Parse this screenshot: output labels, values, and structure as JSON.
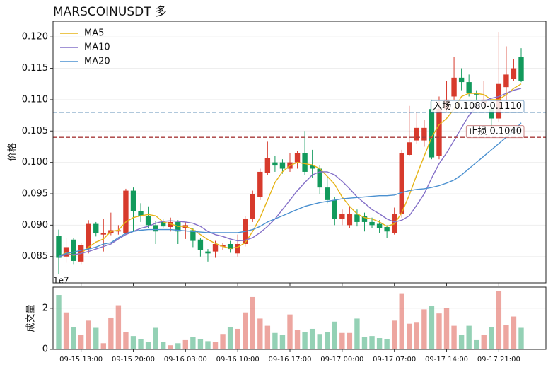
{
  "chart_data": {
    "type": "candlestick",
    "title": "MARSCOINUSDT  多",
    "ylabel": "价格",
    "volume_ylabel": "成交量",
    "volume_offset_label": "1e7",
    "x": [
      "09-15 10:00",
      "09-15 11:00",
      "09-15 12:00",
      "09-15 13:00",
      "09-15 14:00",
      "09-15 15:00",
      "09-15 16:00",
      "09-15 17:00",
      "09-15 18:00",
      "09-15 19:00",
      "09-15 20:00",
      "09-15 21:00",
      "09-15 22:00",
      "09-15 23:00",
      "09-16 00:00",
      "09-16 01:00",
      "09-16 02:00",
      "09-16 03:00",
      "09-16 04:00",
      "09-16 05:00",
      "09-16 06:00",
      "09-16 07:00",
      "09-16 08:00",
      "09-16 09:00",
      "09-16 10:00",
      "09-16 11:00",
      "09-16 12:00",
      "09-16 13:00",
      "09-16 14:00",
      "09-16 15:00",
      "09-16 16:00",
      "09-16 17:00",
      "09-16 18:00",
      "09-16 19:00",
      "09-16 20:00",
      "09-16 21:00",
      "09-16 22:00",
      "09-16 23:00",
      "09-17 00:00",
      "09-17 01:00",
      "09-17 02:00",
      "09-17 03:00",
      "09-17 04:00",
      "09-17 05:00",
      "09-17 06:00",
      "09-17 07:00",
      "09-17 08:00",
      "09-17 09:00",
      "09-17 10:00",
      "09-17 11:00",
      "09-17 12:00",
      "09-17 13:00",
      "09-17 14:00",
      "09-17 15:00",
      "09-17 16:00",
      "09-17 17:00",
      "09-17 18:00",
      "09-17 19:00",
      "09-17 20:00",
      "09-17 21:00",
      "09-17 22:00",
      "09-17 23:00",
      "09-18 00:00"
    ],
    "xticks": [
      "09-15 13:00",
      "09-15 20:00",
      "09-16 03:00",
      "09-16 10:00",
      "09-16 17:00",
      "09-17 00:00",
      "09-17 07:00",
      "09-17 14:00",
      "09-17 21:00"
    ],
    "open": [
      0.0883,
      0.085,
      0.0877,
      0.0842,
      0.0862,
      0.0902,
      0.0885,
      0.0888,
      0.089,
      0.0888,
      0.0955,
      0.0922,
      0.0915,
      0.09,
      0.0905,
      0.0897,
      0.0905,
      0.0895,
      0.0892,
      0.0877,
      0.0858,
      0.0858,
      0.0866,
      0.087,
      0.0855,
      0.087,
      0.091,
      0.0945,
      0.0983,
      0.1,
      0.1,
      0.099,
      0.1,
      0.1015,
      0.0995,
      0.099,
      0.096,
      0.094,
      0.091,
      0.09,
      0.0917,
      0.0915,
      0.0905,
      0.0902,
      0.0897,
      0.0888,
      0.0918,
      0.1012,
      0.1035,
      0.1035,
      0.1085,
      0.101,
      0.1085,
      0.1105,
      0.1135,
      0.1128,
      0.111,
      0.1095,
      0.1085,
      0.107,
      0.112,
      0.1133,
      0.1168
    ],
    "high": [
      0.0893,
      0.088,
      0.088,
      0.0872,
      0.0908,
      0.0905,
      0.091,
      0.092,
      0.09,
      0.0958,
      0.096,
      0.0935,
      0.093,
      0.0907,
      0.091,
      0.0912,
      0.0908,
      0.0905,
      0.0895,
      0.088,
      0.0862,
      0.0875,
      0.0872,
      0.0875,
      0.0885,
      0.0915,
      0.0955,
      0.099,
      0.1033,
      0.101,
      0.1005,
      0.1015,
      0.1018,
      0.105,
      0.102,
      0.0995,
      0.0975,
      0.0945,
      0.0925,
      0.093,
      0.0925,
      0.092,
      0.0912,
      0.0908,
      0.09,
      0.0928,
      0.102,
      0.109,
      0.108,
      0.1068,
      0.11,
      0.1105,
      0.113,
      0.1168,
      0.115,
      0.114,
      0.1115,
      0.113,
      0.109,
      0.1208,
      0.1185,
      0.1165,
      0.1182
    ],
    "low": [
      0.0822,
      0.084,
      0.0838,
      0.0838,
      0.0855,
      0.0882,
      0.0858,
      0.0884,
      0.0885,
      0.0885,
      0.089,
      0.0905,
      0.0895,
      0.087,
      0.0895,
      0.089,
      0.087,
      0.0878,
      0.0865,
      0.085,
      0.0842,
      0.0848,
      0.086,
      0.0856,
      0.085,
      0.0866,
      0.0905,
      0.094,
      0.098,
      0.0985,
      0.0982,
      0.0985,
      0.099,
      0.098,
      0.0975,
      0.095,
      0.0935,
      0.09,
      0.09,
      0.0895,
      0.0898,
      0.089,
      0.0895,
      0.0888,
      0.088,
      0.0885,
      0.0912,
      0.101,
      0.103,
      0.1025,
      0.1005,
      0.1005,
      0.108,
      0.11,
      0.1115,
      0.1105,
      0.11,
      0.1085,
      0.105,
      0.1065,
      0.109,
      0.113,
      0.1128
    ],
    "close": [
      0.0848,
      0.0865,
      0.0843,
      0.0868,
      0.0902,
      0.0888,
      0.0888,
      0.0892,
      0.0892,
      0.0955,
      0.0922,
      0.0915,
      0.09,
      0.089,
      0.0898,
      0.0905,
      0.089,
      0.09,
      0.0875,
      0.086,
      0.0855,
      0.087,
      0.0868,
      0.0862,
      0.087,
      0.091,
      0.095,
      0.0985,
      0.1007,
      0.0995,
      0.099,
      0.1,
      0.1015,
      0.0985,
      0.099,
      0.096,
      0.094,
      0.091,
      0.0918,
      0.0918,
      0.0905,
      0.0905,
      0.09,
      0.0895,
      0.089,
      0.0918,
      0.1015,
      0.1032,
      0.1055,
      0.1055,
      0.1008,
      0.1085,
      0.11,
      0.1135,
      0.1128,
      0.111,
      0.1108,
      0.11,
      0.107,
      0.1125,
      0.114,
      0.115,
      0.113
    ],
    "volume": [
      2.65,
      1.8,
      1.1,
      0.7,
      1.4,
      1.05,
      0.3,
      1.55,
      2.15,
      0.85,
      0.65,
      0.5,
      0.35,
      1.05,
      0.35,
      0.2,
      0.3,
      0.45,
      0.6,
      0.5,
      0.4,
      0.35,
      0.75,
      1.1,
      1.0,
      1.8,
      2.55,
      1.5,
      1.15,
      0.8,
      0.7,
      1.7,
      0.95,
      0.85,
      1.0,
      0.75,
      0.85,
      1.35,
      0.8,
      0.8,
      1.5,
      0.6,
      0.65,
      0.55,
      0.5,
      1.4,
      2.7,
      1.25,
      1.3,
      1.95,
      2.1,
      1.75,
      2.0,
      1.15,
      0.7,
      1.15,
      0.45,
      0.7,
      1.1,
      2.85,
      1.2,
      1.6,
      1.05
    ],
    "up_color": "#d73a2c",
    "down_color": "#129a5c",
    "series": [
      {
        "name": "MA5",
        "color": "#e6b417",
        "values": [
          0.085,
          0.0856,
          0.0852,
          0.0855,
          0.0865,
          0.0873,
          0.0878,
          0.089,
          0.0892,
          0.0905,
          0.0912,
          0.0915,
          0.0917,
          0.0915,
          0.0905,
          0.0902,
          0.0898,
          0.0898,
          0.0893,
          0.0885,
          0.0877,
          0.0871,
          0.0866,
          0.0863,
          0.0865,
          0.0872,
          0.089,
          0.0912,
          0.094,
          0.0968,
          0.0985,
          0.0995,
          0.1,
          0.0998,
          0.0996,
          0.099,
          0.0978,
          0.0965,
          0.0945,
          0.093,
          0.0918,
          0.0912,
          0.091,
          0.0905,
          0.0898,
          0.0902,
          0.092,
          0.0948,
          0.098,
          0.101,
          0.104,
          0.106,
          0.107,
          0.1085,
          0.1105,
          0.111,
          0.111,
          0.1108,
          0.11,
          0.11,
          0.1108,
          0.1118,
          0.1125
        ]
      },
      {
        "name": "MA10",
        "color": "#8470c8",
        "values": [
          0.085,
          0.0853,
          0.0853,
          0.0855,
          0.0858,
          0.0862,
          0.0866,
          0.087,
          0.0878,
          0.0885,
          0.089,
          0.0895,
          0.0898,
          0.0903,
          0.0906,
          0.0907,
          0.0906,
          0.0905,
          0.0903,
          0.0898,
          0.089,
          0.0885,
          0.0882,
          0.0878,
          0.0875,
          0.0876,
          0.088,
          0.0888,
          0.0898,
          0.091,
          0.0925,
          0.094,
          0.0955,
          0.0968,
          0.098,
          0.0985,
          0.0985,
          0.098,
          0.097,
          0.0958,
          0.0945,
          0.0935,
          0.0925,
          0.0918,
          0.091,
          0.0905,
          0.0908,
          0.0915,
          0.0932,
          0.095,
          0.0975,
          0.0998,
          0.1015,
          0.1035,
          0.1055,
          0.1075,
          0.1088,
          0.1098,
          0.1102,
          0.1105,
          0.111,
          0.1115,
          0.1118
        ]
      },
      {
        "name": "MA20",
        "color": "#4a90d0",
        "values": [
          0.085,
          0.0855,
          0.0857,
          0.086,
          0.0862,
          0.0865,
          0.087,
          0.0872,
          0.088,
          0.0887,
          0.089,
          0.0892,
          0.0893,
          0.0893,
          0.0893,
          0.0893,
          0.0892,
          0.0891,
          0.089,
          0.0889,
          0.0888,
          0.0888,
          0.0888,
          0.0888,
          0.0888,
          0.089,
          0.0893,
          0.0898,
          0.0905,
          0.091,
          0.0915,
          0.092,
          0.0925,
          0.093,
          0.0933,
          0.0936,
          0.0938,
          0.094,
          0.0942,
          0.0943,
          0.0944,
          0.0945,
          0.0946,
          0.0947,
          0.0947,
          0.0948,
          0.0952,
          0.0955,
          0.0957,
          0.0958,
          0.096,
          0.0963,
          0.0967,
          0.0972,
          0.098,
          0.099,
          0.1,
          0.101,
          0.102,
          0.103,
          0.104,
          0.105,
          0.1063
        ]
      }
    ],
    "hlines": [
      {
        "value": 0.108,
        "label": "入场 0.1080-0.1110",
        "color": "#2e6da4"
      },
      {
        "value": 0.104,
        "label": "止损 0.1040",
        "color": "#a83a3a"
      }
    ],
    "ylim": [
      0.0808,
      0.1225
    ],
    "yticks": [
      0.085,
      {
        "value": 0.09,
        "label": "0.090"
      },
      0.095,
      {
        "value": 0.1,
        "label": "0.100"
      },
      0.105,
      {
        "value": 0.11,
        "label": "0.110"
      },
      0.115,
      {
        "value": 0.12,
        "label": "0.120"
      }
    ],
    "volume_ylim": [
      0,
      3.03
    ],
    "volume_yticks": [
      0,
      2
    ],
    "grid": true,
    "legend": "upper left"
  }
}
